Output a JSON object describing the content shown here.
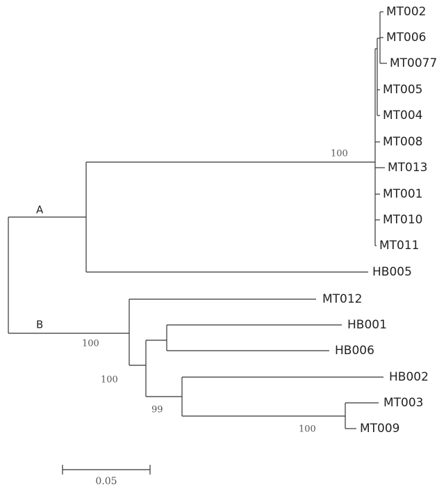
{
  "leaves": [
    "MT002",
    "MT006",
    "MT0077",
    "MT005",
    "MT004",
    "MT008",
    "MT013",
    "MT001",
    "MT010",
    "MT011",
    "HB005",
    "MT012",
    "HB001",
    "HB006",
    "HB002",
    "MT003",
    "MT009"
  ],
  "clades": [
    "A",
    "B"
  ],
  "bootstrap": [
    "100",
    "100",
    "100",
    "99",
    "100"
  ],
  "scale_bar": "0.05"
}
